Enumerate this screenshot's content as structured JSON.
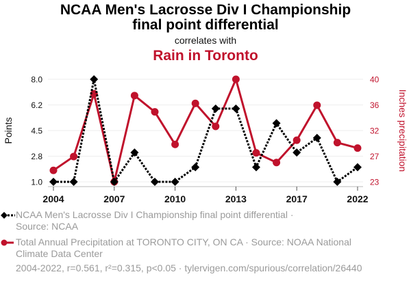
{
  "header": {
    "title_line1": "NCAA Men's Lacrosse Div I Championship",
    "title_line2": "final point differential",
    "subtitle": "correlates with",
    "title2": "Rain in Toronto"
  },
  "colors": {
    "series1": "#000000",
    "series2": "#c0122c",
    "grid": "#eeeeee",
    "muted_text": "#9a9a9a"
  },
  "legend": {
    "series1_label": "NCAA Men's Lacrosse Div I Championship final point differential ·",
    "series1_source": "Source: NCAA",
    "series2_label": "Total Annual Precipitation at TORONTO CITY, ON CA · Source: NOAA National",
    "series2_source": "Climate Data Center"
  },
  "footer": "2004-2022, r=0.561, r²=0.315, p<0.05 · tylervigen.com/spurious/correlation/26440",
  "chart_data": {
    "type": "line",
    "title": "NCAA Men's Lacrosse Div I Championship final point differential correlates with Rain in Toronto",
    "x_tick_labels": [
      {
        "index": 0,
        "label": "2004"
      },
      {
        "index": 3,
        "label": "2007"
      },
      {
        "index": 6,
        "label": "2010"
      },
      {
        "index": 9,
        "label": "2013"
      },
      {
        "index": 12,
        "label": "2017"
      },
      {
        "index": 15,
        "label": "2022"
      }
    ],
    "point_count": 16,
    "ylabel_left": "Points",
    "ylabel_right": "Inches precipitation",
    "ylim_left": [
      1.0,
      8.0
    ],
    "yticks_left": [
      "1.0",
      "2.8",
      "4.5",
      "6.2",
      "8.0"
    ],
    "ylim_right": [
      23,
      40
    ],
    "yticks_right": [
      "23",
      "27",
      "32",
      "36",
      "40"
    ],
    "grid": true,
    "series": [
      {
        "name": "NCAA Men's Lacrosse Div I Championship final point differential",
        "axis": "left",
        "style": "dotted",
        "marker": "diamond",
        "values": [
          1,
          1,
          8,
          1,
          3,
          1,
          1,
          2,
          6,
          6,
          2,
          5,
          3,
          4,
          1,
          2
        ]
      },
      {
        "name": "Total Annual Precipitation at TORONTO CITY, ON CA",
        "axis": "right",
        "style": "solid",
        "marker": "circle",
        "values": [
          24.9,
          27.2,
          37.6,
          23.0,
          37.3,
          34.6,
          29.2,
          36.0,
          32.2,
          40.0,
          27.8,
          26.2,
          29.9,
          35.7,
          29.5,
          28.6
        ]
      }
    ]
  }
}
